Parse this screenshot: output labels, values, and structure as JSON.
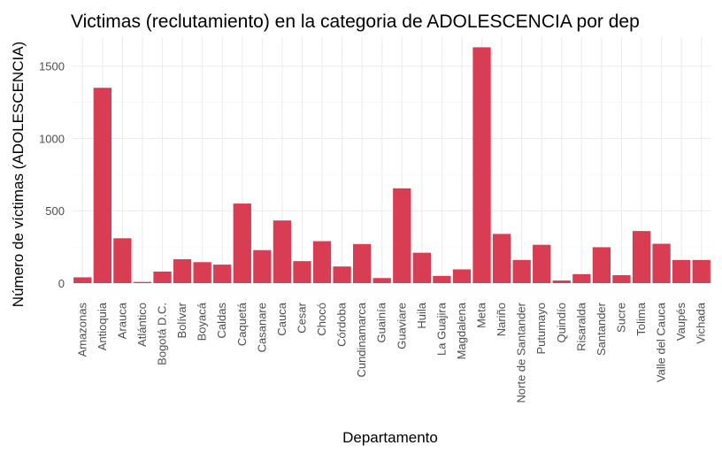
{
  "chart_data": {
    "type": "bar",
    "title": "Victimas (reclutamiento) en la categoria de ADOLESCENCIA por dep",
    "xlabel": "Departamento",
    "ylabel": "Número de víctimas (ADOLESCENCIA)",
    "categories": [
      "Amazonas",
      "Antioquia",
      "Arauca",
      "Atlántico",
      "Bogotá D.C.",
      "Bolívar",
      "Boyacá",
      "Caldas",
      "Caquetá",
      "Casanare",
      "Cauca",
      "Cesar",
      "Chocó",
      "Córdoba",
      "Cundinamarca",
      "Guainía",
      "Guaviare",
      "Huila",
      "La Guajira",
      "Magdalena",
      "Meta",
      "Nariño",
      "Norte de Santander",
      "Putumayo",
      "Quindío",
      "Risaralda",
      "Santander",
      "Sucre",
      "Tolima",
      "Valle del Cauca",
      "Vaupés",
      "Vichada"
    ],
    "values": [
      40,
      1350,
      310,
      8,
      80,
      165,
      145,
      128,
      550,
      228,
      433,
      152,
      290,
      115,
      270,
      35,
      655,
      210,
      50,
      95,
      1630,
      340,
      160,
      265,
      18,
      62,
      248,
      55,
      360,
      272,
      160,
      160
    ],
    "ylim": [
      0,
      1700
    ],
    "yticks": [
      0,
      500,
      1000,
      1500
    ],
    "bar_color": "#d93d53",
    "grid": true,
    "legend": "none"
  }
}
